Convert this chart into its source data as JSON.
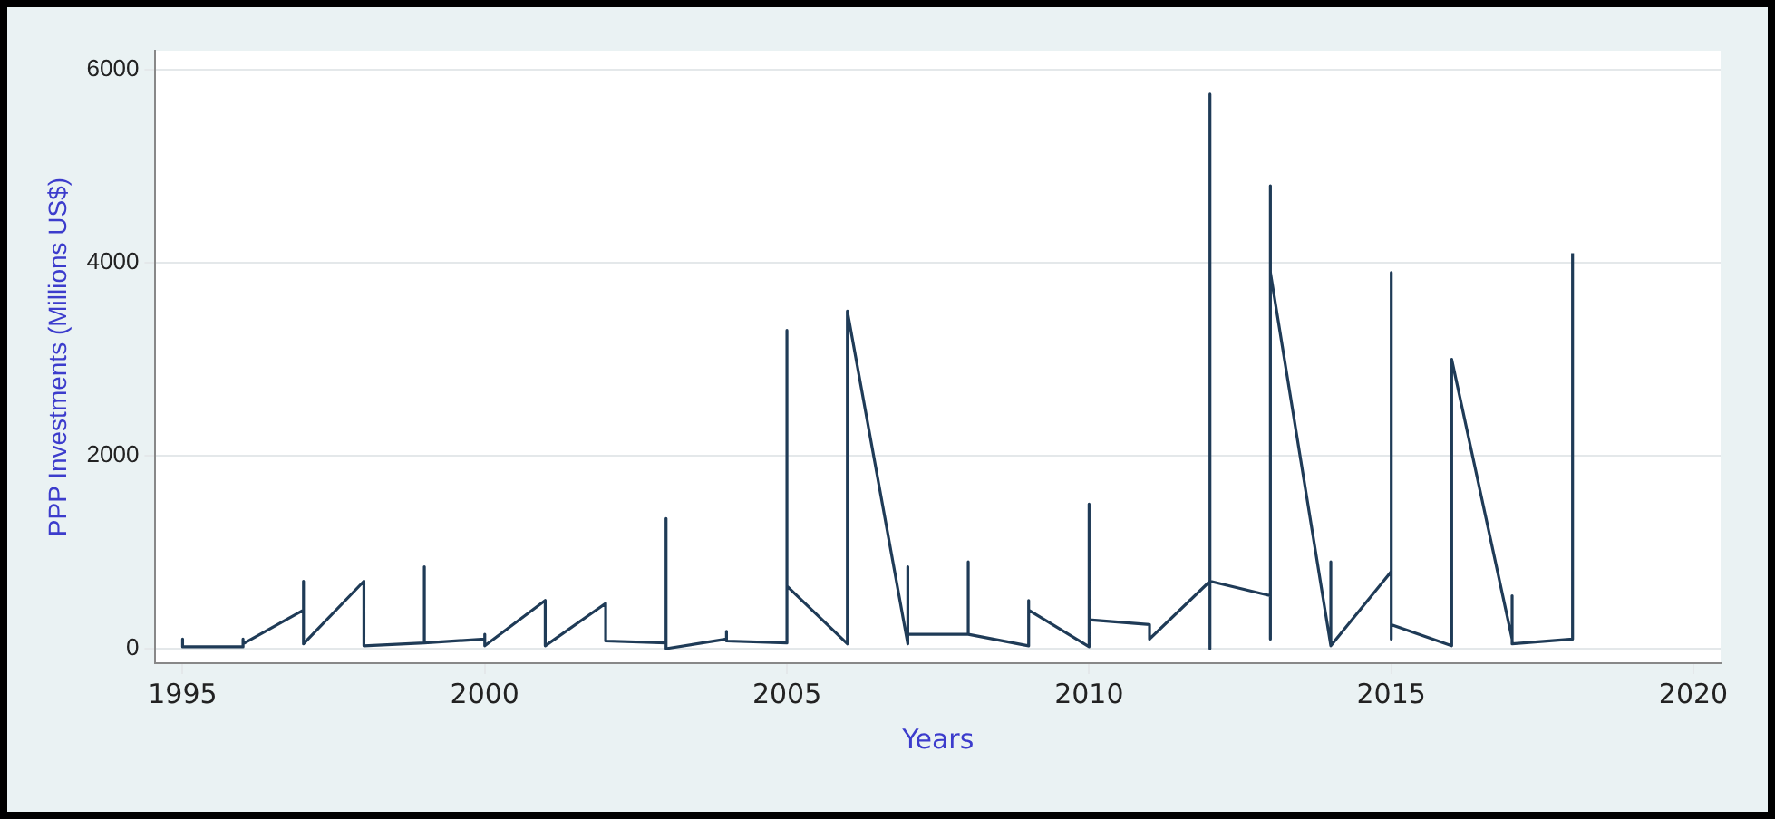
{
  "chart_data": {
    "type": "line",
    "xlabel": "Years",
    "ylabel": "PPP Investments (Millions US$)",
    "x": [
      1995,
      1995,
      1996,
      1996,
      1996,
      1997,
      1997,
      1997,
      1998,
      1998,
      1999,
      1999,
      1999,
      2000,
      2000,
      2000,
      2001,
      2001,
      2002,
      2002,
      2003,
      2003,
      2003,
      2004,
      2004,
      2004,
      2005,
      2005,
      2005,
      2006,
      2006,
      2007,
      2007,
      2007,
      2008,
      2008,
      2008,
      2009,
      2009,
      2009,
      2010,
      2010,
      2010,
      2011,
      2011,
      2012,
      2012,
      2012,
      2012,
      2013,
      2013,
      2013,
      2013,
      2014,
      2014,
      2014,
      2015,
      2015,
      2015,
      2015,
      2016,
      2016,
      2017,
      2017,
      2017,
      2018,
      2018
    ],
    "values": [
      100,
      20,
      20,
      100,
      50,
      400,
      700,
      50,
      700,
      30,
      60,
      850,
      60,
      100,
      150,
      30,
      500,
      30,
      470,
      80,
      60,
      1350,
      0,
      100,
      180,
      80,
      60,
      3300,
      650,
      50,
      3500,
      50,
      850,
      150,
      150,
      900,
      150,
      30,
      500,
      400,
      20,
      1500,
      300,
      250,
      100,
      700,
      0,
      5750,
      700,
      550,
      100,
      4800,
      3900,
      30,
      900,
      30,
      800,
      3900,
      100,
      250,
      30,
      3000,
      100,
      550,
      50,
      100,
      4100
    ],
    "color": "#1f3b57",
    "xlim": [
      1994.55,
      2020.45
    ],
    "xticks": [
      1995,
      2000,
      2005,
      2010,
      2015,
      2020
    ],
    "ylim": [
      -150,
      6200
    ],
    "yticks": [
      0,
      2000,
      4000,
      6000
    ],
    "grid": "y",
    "legend": false,
    "marker": "none",
    "line_style": "solid"
  }
}
